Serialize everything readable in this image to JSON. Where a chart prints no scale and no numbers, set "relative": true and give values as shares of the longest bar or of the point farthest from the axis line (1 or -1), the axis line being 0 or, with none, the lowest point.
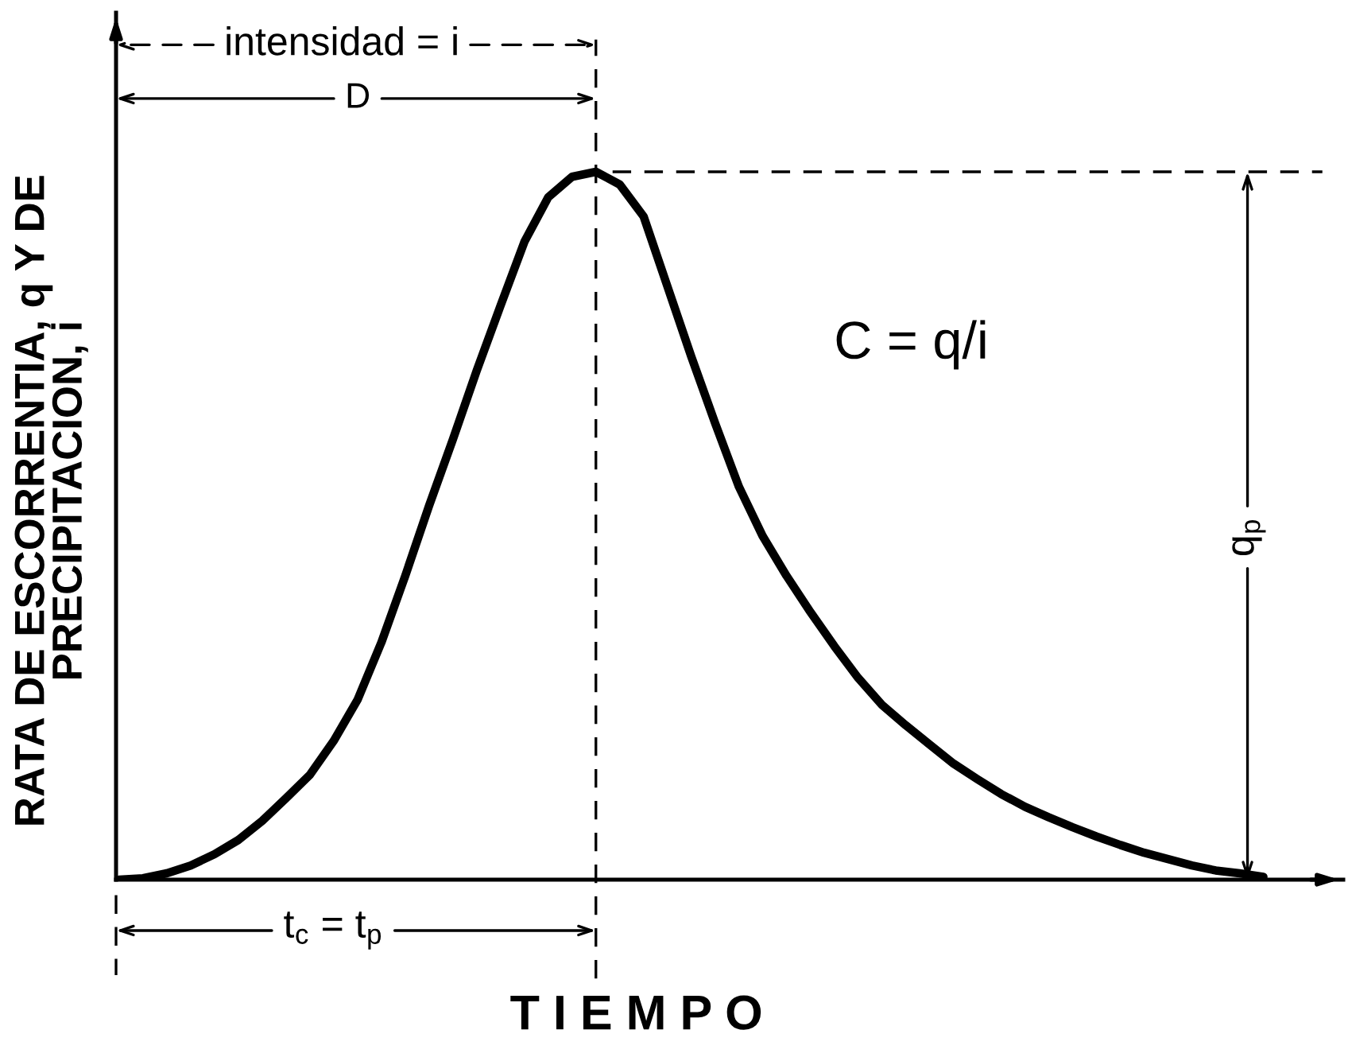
{
  "chart_data": {
    "type": "line",
    "relative": true,
    "xlabel": "T I E M P O",
    "ylabel": "RATA DE ESCORRENTIA, q Y DE\nPRECIPITACION, i",
    "categories": [
      null,
      null,
      null,
      null,
      null,
      null,
      null,
      null,
      null,
      null,
      null,
      null,
      null,
      null,
      null,
      null,
      null,
      null,
      null,
      null,
      null,
      null,
      null,
      null,
      null,
      null,
      null,
      null,
      null,
      null,
      null,
      null,
      null,
      null,
      null,
      null,
      null,
      null,
      null,
      null,
      null,
      null,
      null,
      null,
      null,
      null,
      null,
      null,
      null
    ],
    "series": [
      {
        "color": "#000000",
        "values": [
          0,
          0.002,
          0.009,
          0.02,
          0.036,
          0.056,
          0.083,
          0.115,
          0.148,
          0.196,
          0.254,
          0.335,
          0.429,
          0.528,
          0.622,
          0.719,
          0.811,
          0.901,
          0.964,
          0.993,
          1,
          0.982,
          0.937,
          0.838,
          0.739,
          0.645,
          0.555,
          0.485,
          0.429,
          0.378,
          0.33,
          0.285,
          0.247,
          0.218,
          0.191,
          0.164,
          0.142,
          0.121,
          0.103,
          0.088,
          0.074,
          0.061,
          0.049,
          0.038,
          0.029,
          0.02,
          0.013,
          0.009,
          0.004
        ]
      }
    ],
    "line_style": "solid",
    "ref_lines": [
      {
        "axis": "y",
        "value": 1,
        "line_style": "dashed",
        "color": "#000000"
      }
    ],
    "annotations": [
      "intensidad = i",
      "D",
      "C = q/i",
      "q$_{p}$",
      "t$_{c}$ = t$_{p}$"
    ]
  }
}
